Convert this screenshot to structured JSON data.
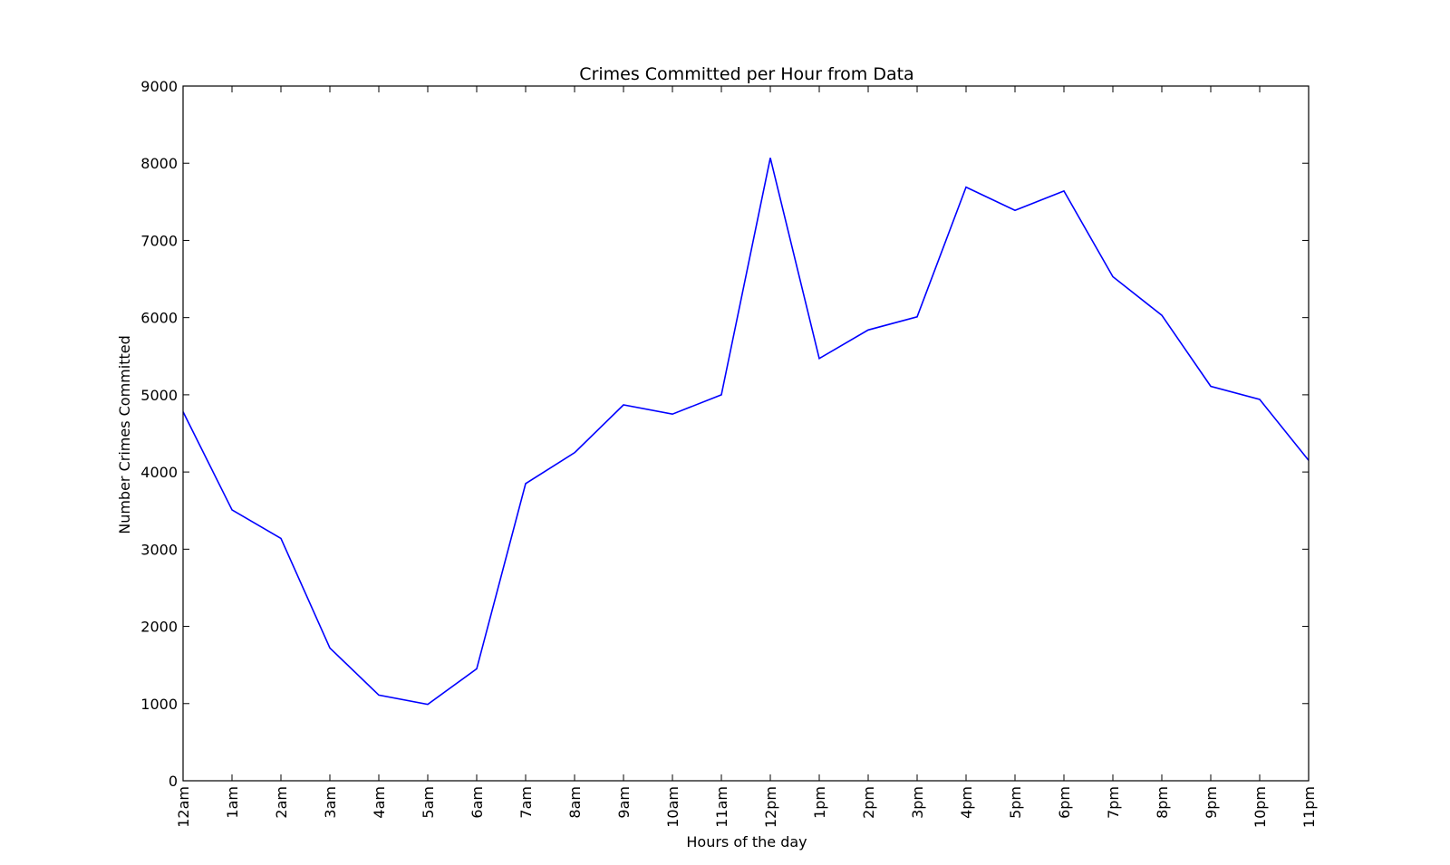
{
  "chart_data": {
    "type": "line",
    "title": "Crimes Committed per Hour from Data",
    "xlabel": "Hours of the day",
    "ylabel": "Number Crimes Committed",
    "categories": [
      "12am",
      "1am",
      "2am",
      "3am",
      "4am",
      "5am",
      "6am",
      "7am",
      "8am",
      "9am",
      "10am",
      "11am",
      "12pm",
      "1pm",
      "2pm",
      "3pm",
      "4pm",
      "5pm",
      "6pm",
      "7pm",
      "8pm",
      "9pm",
      "10pm",
      "11pm"
    ],
    "series": [
      {
        "color": "#0000ff",
        "values": [
          4780,
          3510,
          3140,
          1720,
          1110,
          990,
          1450,
          3850,
          4250,
          4870,
          4750,
          5000,
          8070,
          5470,
          5840,
          6010,
          7690,
          7390,
          7640,
          6530,
          6030,
          5110,
          4940,
          4150
        ]
      }
    ],
    "ylim": [
      0,
      9000
    ],
    "yticks": [
      "0",
      "1000",
      "2000",
      "3000",
      "4000",
      "5000",
      "6000",
      "7000",
      "8000",
      "9000"
    ],
    "grid": false,
    "legend": false
  }
}
